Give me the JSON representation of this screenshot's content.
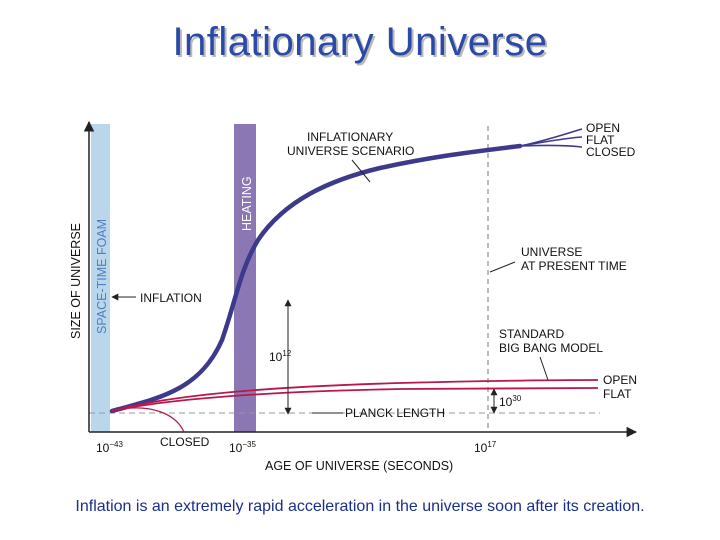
{
  "title": "Inflationary Universe",
  "caption": "Inflation is an extremely rapid acceleration in the universe soon after its creation.",
  "colors": {
    "title": "#2b4aa7",
    "inflationary_curve": "#3d3a8c",
    "big_bang_curve": "#b8194a",
    "foam_band": "#b9d6ea",
    "heating_band": "#8b77b3",
    "foam_label": "#4f7fbf",
    "heating_label": "#ffffff"
  },
  "diagram": {
    "y_axis_label": "SIZE OF UNIVERSE",
    "x_axis_label": "AGE OF UNIVERSE (SECONDS)",
    "foam_label": "SPACE-TIME FOAM",
    "heating_label": "HEATING",
    "inflation_label": "INFLATION",
    "scenario_label_1": "INFLATIONARY",
    "scenario_label_2": "UNIVERSE SCENARIO",
    "present_label_1": "UNIVERSE",
    "present_label_2": "AT PRESENT TIME",
    "bigbang_label_1": "STANDARD",
    "bigbang_label_2": "BIG BANG MODEL",
    "planck_label": "PLANCK LENGTH",
    "closed_label": "CLOSED",
    "curve_open": "OPEN",
    "curve_flat": "FLAT",
    "curve_closed": "CLOSED",
    "ratio_1012_base": "10",
    "ratio_1012_exp": "12",
    "ratio_1030_base": "10",
    "ratio_1030_exp": "30",
    "tick_1_base": "10",
    "tick_1_exp": "−43",
    "tick_2_base": "10",
    "tick_2_exp": "−35",
    "tick_3_base": "10",
    "tick_3_exp": "17"
  }
}
